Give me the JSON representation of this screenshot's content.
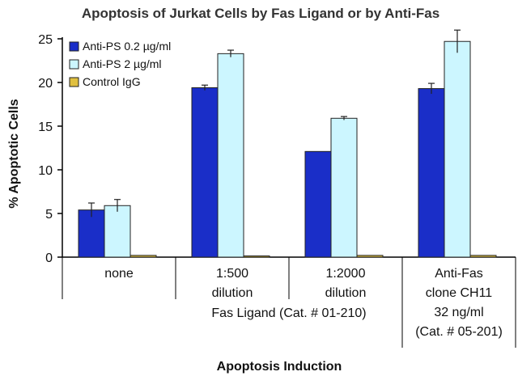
{
  "chart_data": {
    "type": "bar",
    "title": "Apoptosis of Jurkat Cells by Fas Ligand or by Anti-Fas",
    "xlabel": "Apoptosis Induction",
    "ylabel": "% Apoptotic Cells",
    "ylim": [
      0,
      25
    ],
    "yticks": [
      "0",
      "5",
      "10",
      "15",
      "20",
      "25"
    ],
    "grid": false,
    "legend_position": "top-left",
    "categories": [
      {
        "lines": [
          "none"
        ]
      },
      {
        "lines": [
          "1:500",
          "dilution"
        ]
      },
      {
        "lines": [
          "1:2000",
          "dilution"
        ]
      },
      {
        "lines": [
          "Anti-Fas",
          "clone CH11",
          "32 ng/ml",
          "(Cat. # 05-201)"
        ]
      }
    ],
    "group_label": "Fas Ligand (Cat. # 01-210)",
    "series": [
      {
        "name": "Anti-PS 0.2 µg/ml",
        "color": "#1a2ec8",
        "values": [
          5.4,
          19.4,
          12.1,
          19.3
        ],
        "errors": [
          0.8,
          0.3,
          0,
          0.6
        ]
      },
      {
        "name": "Anti-PS 2 µg/ml",
        "color": "#ccf6ff",
        "values": [
          5.9,
          23.3,
          15.9,
          24.7
        ],
        "errors": [
          0.7,
          0.4,
          0.2,
          1.3
        ]
      },
      {
        "name": "Control IgG",
        "color": "#e0c040",
        "values": [
          0.2,
          0.1,
          0.2,
          0.2
        ],
        "errors": [
          0,
          0,
          0,
          0
        ]
      }
    ]
  }
}
